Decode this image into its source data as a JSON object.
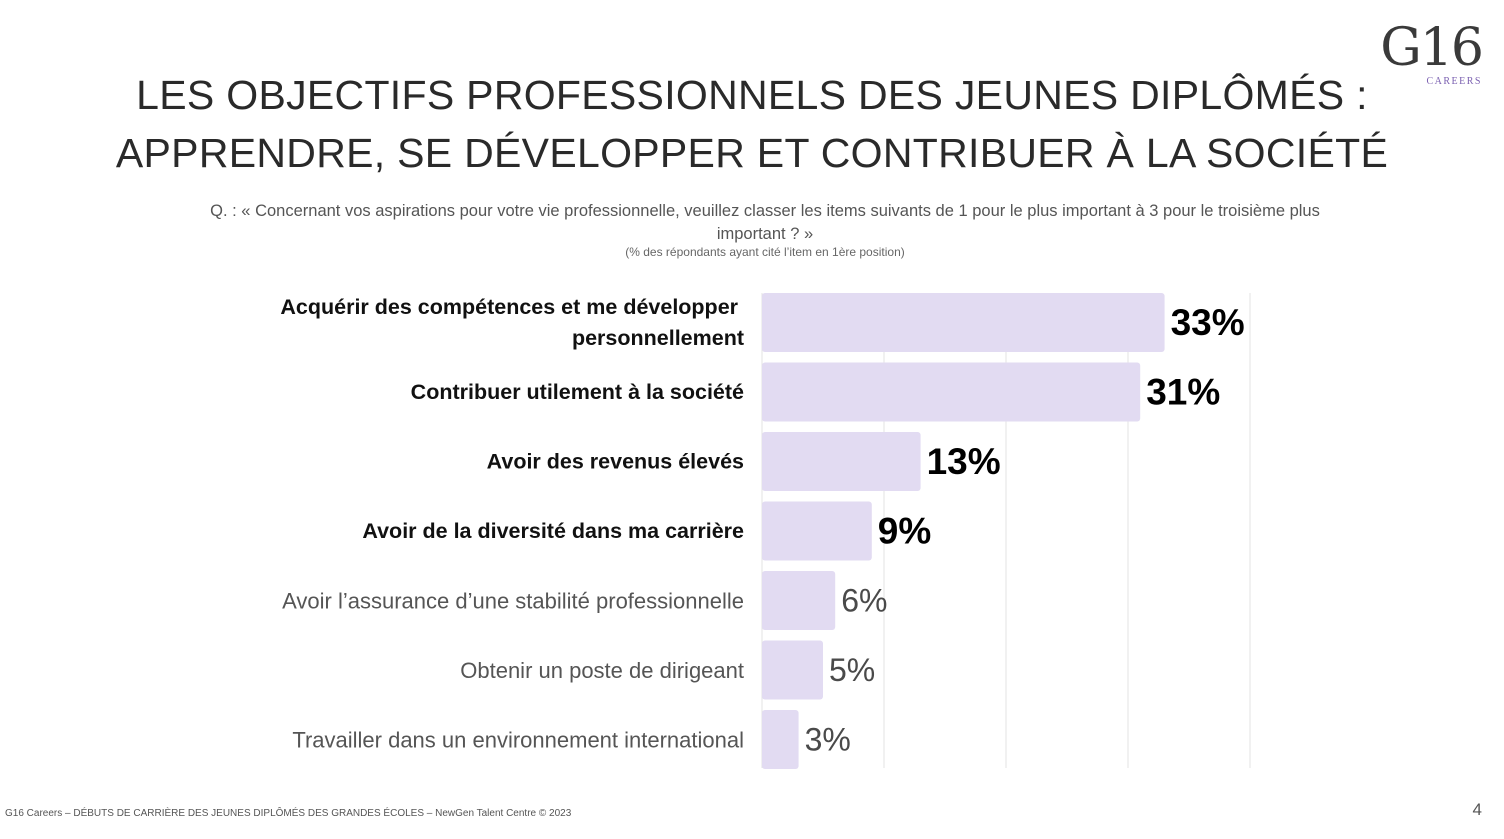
{
  "logo": {
    "mark": "G16",
    "sub": "CAREERS"
  },
  "title": {
    "line1": "LES OBJECTIFS PROFESSIONNELS DES JEUNES DIPLÔMÉS :",
    "line2": "APPRENDRE, SE DÉVELOPPER ET CONTRIBUER À LA SOCIÉTÉ"
  },
  "question": "Q. : « Concernant vos aspirations pour votre vie professionnelle, veuillez classer les items suivants de 1 pour le plus important à 3 pour le troisième plus important ? »",
  "note": "(% des répondants ayant cité l’item en 1ère position)",
  "chart_data": {
    "type": "bar",
    "orientation": "horizontal",
    "categories": [
      [
        "Acquérir des compétences et me développer ",
        "personnellement"
      ],
      [
        "Contribuer utilement à la société"
      ],
      [
        "Avoir des revenus élevés"
      ],
      [
        "Avoir de la diversité dans ma carrière"
      ],
      [
        "Avoir l’assurance d’une stabilité professionnelle"
      ],
      [
        "Obtenir un poste de dirigeant"
      ],
      [
        "Travailler dans un environnement international"
      ]
    ],
    "values": [
      33,
      31,
      13,
      9,
      6,
      5,
      3
    ],
    "labels": [
      "33%",
      "31%",
      "13%",
      "9%",
      "6%",
      "5%",
      "3%"
    ],
    "emphasized": [
      true,
      true,
      true,
      true,
      false,
      false,
      false
    ],
    "xlim": [
      0,
      40
    ],
    "grid": true,
    "bar_color": "#e2dbf2",
    "grid_color": "#e3e3e3"
  },
  "footer": "G16 Careers – DÉBUTS DE CARRIÈRE DES JEUNES DIPLÔMÉS DES GRANDES ÉCOLES – NewGen Talent Centre © 2023",
  "page_number": "4"
}
